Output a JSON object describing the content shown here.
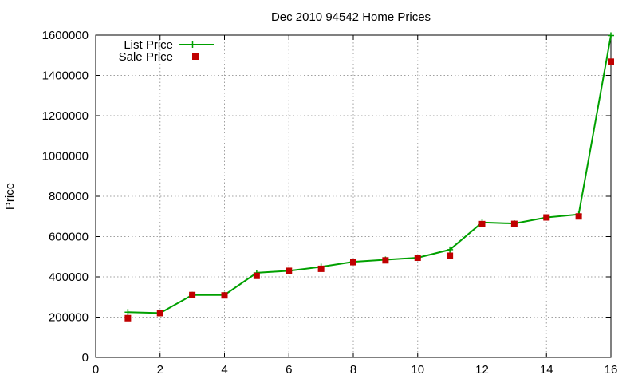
{
  "chart_data": {
    "type": "line",
    "title": "Dec 2010 94542 Home Prices",
    "xlabel": "",
    "ylabel": "Price",
    "xlim": [
      0,
      16
    ],
    "ylim": [
      0,
      1600000
    ],
    "x_ticks": [
      0,
      2,
      4,
      6,
      8,
      10,
      12,
      14,
      16
    ],
    "y_ticks": [
      0,
      200000,
      400000,
      600000,
      800000,
      1000000,
      1200000,
      1400000,
      1600000
    ],
    "grid": true,
    "legend_position": "top-left",
    "series": [
      {
        "name": "List Price",
        "style": "line-plus",
        "color": "#00a000",
        "x": [
          1,
          2,
          3,
          4,
          5,
          6,
          7,
          8,
          9,
          10,
          11,
          12,
          13,
          14,
          15,
          16
        ],
        "values": [
          225000,
          220000,
          310000,
          310000,
          420000,
          430000,
          450000,
          475000,
          485000,
          495000,
          535000,
          670000,
          665000,
          695000,
          710000,
          1598000
        ]
      },
      {
        "name": "Sale Price",
        "style": "square",
        "color": "#c00000",
        "x": [
          1,
          2,
          3,
          4,
          5,
          6,
          7,
          8,
          9,
          10,
          11,
          12,
          13,
          14,
          15,
          16
        ],
        "values": [
          195000,
          220000,
          310000,
          308000,
          405000,
          430000,
          440000,
          473000,
          482000,
          495000,
          505000,
          662000,
          663000,
          695000,
          700000,
          1468000
        ]
      }
    ]
  }
}
